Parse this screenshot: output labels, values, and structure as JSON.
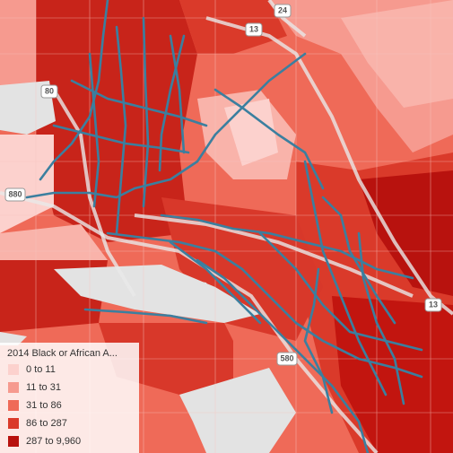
{
  "legend": {
    "title": "2014 Black or African A...",
    "items": [
      {
        "label": "0 to 11",
        "color": "#fcd1cd"
      },
      {
        "label": "11 to 31",
        "color": "#f69a8f"
      },
      {
        "label": "31 to 86",
        "color": "#ef6a58"
      },
      {
        "label": "86 to 287",
        "color": "#da3a2a"
      },
      {
        "label": "287 to 9,960",
        "color": "#b8120e"
      }
    ]
  },
  "shields": [
    {
      "label": "24"
    },
    {
      "label": "13"
    },
    {
      "label": "80"
    },
    {
      "label": "880"
    },
    {
      "label": "580"
    },
    {
      "label": "13"
    }
  ]
}
